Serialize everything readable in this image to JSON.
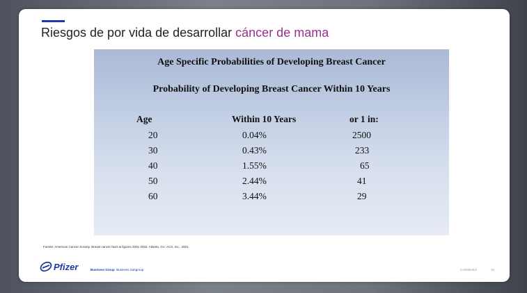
{
  "slide": {
    "title_main": "Riesgos de por vida de desarrollar ",
    "title_highlight": "cáncer de mama",
    "accent_color": "#1f3aa6",
    "highlight_color": "#9b2f8c"
  },
  "panel": {
    "title": "Age Specific Probabilities of Developing Breast Cancer",
    "subtitle": "Probability of Developing Breast Cancer Within 10 Years",
    "columns": [
      "Age",
      "Within 10 Years",
      "or 1 in:"
    ],
    "rows": [
      {
        "age": "20",
        "pct": "0.04%",
        "one_in": "2500"
      },
      {
        "age": "30",
        "pct": "0.43%",
        "one_in": "233"
      },
      {
        "age": "40",
        "pct": "1.55%",
        "one_in": "65"
      },
      {
        "age": "50",
        "pct": "2.44%",
        "one_in": "41"
      },
      {
        "age": "60",
        "pct": "3.44%",
        "one_in": "29"
      }
    ]
  },
  "footer": {
    "source": "Fuente: American Cancer Society. Breast cancer facts & figures 2001-2002. Atlanta, GA: ACS, Inc., 2001.",
    "logo_text": "Pfizer",
    "business_group": "Business Group",
    "business_subgroup": "Business Subgroup",
    "confidential": "Confidential",
    "page_number": "16"
  }
}
